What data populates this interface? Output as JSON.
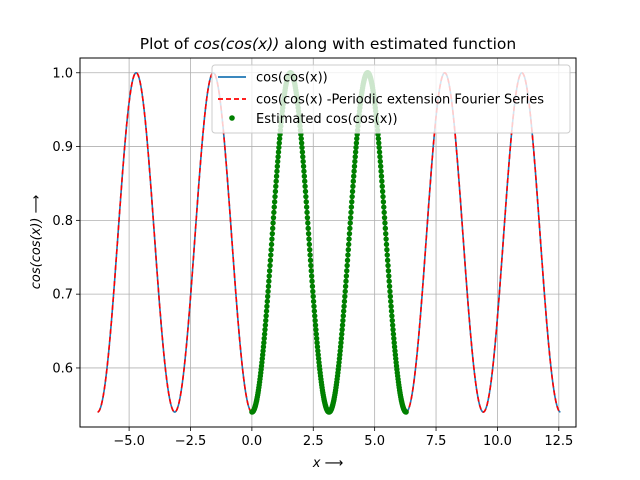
{
  "chart_data": {
    "type": "line",
    "title_plain": "Plot of ",
    "title_math": "cos(cos(x))",
    "title_rest": " along with estimated function",
    "xlabel": "x ⟶",
    "ylabel": "cos(cos(x)) ⟶",
    "xlim": [
      -7.0,
      13.2
    ],
    "ylim": [
      0.52,
      1.02
    ],
    "xticks": [
      -5.0,
      -2.5,
      0.0,
      2.5,
      5.0,
      7.5,
      10.0,
      12.5
    ],
    "xtick_labels": [
      "−5.0",
      "−2.5",
      "0.0",
      "2.5",
      "5.0",
      "7.5",
      "10.0",
      "12.5"
    ],
    "yticks": [
      0.6,
      0.7,
      0.8,
      0.9,
      1.0
    ],
    "ytick_labels": [
      "0.6",
      "0.7",
      "0.8",
      "0.9",
      "1.0"
    ],
    "grid": true,
    "legend_position": "upper-right",
    "series": [
      {
        "name": "cos(cos(x))",
        "style": "solid-line",
        "color": "#1f77b4",
        "x_range": [
          -6.2832,
          12.5664
        ],
        "function": "cos(cos(x))"
      },
      {
        "name": "cos(cos(x) -Periodic extension Fourier Series",
        "style": "dashed-line",
        "color": "#ff0000",
        "x_range": [
          -6.2832,
          12.5664
        ],
        "function": "cos(cos(x))"
      },
      {
        "name": "Estimated cos(cos(x))",
        "style": "markers",
        "color": "#008000",
        "x_range": [
          0.0,
          6.2832
        ],
        "function": "cos(cos(x))"
      }
    ]
  }
}
